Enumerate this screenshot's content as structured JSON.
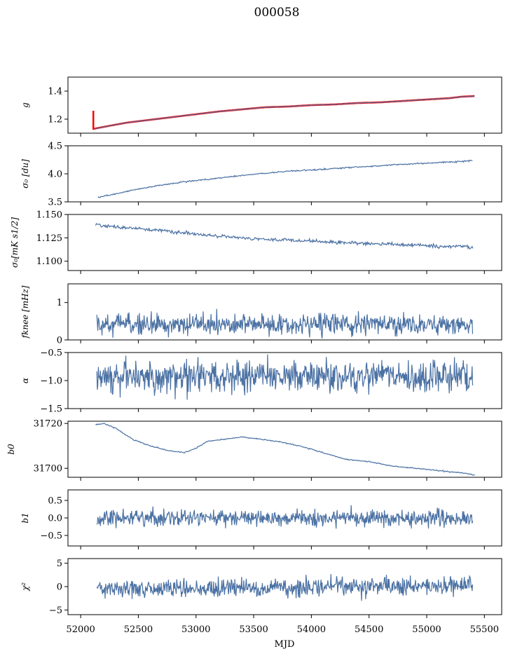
{
  "figure": {
    "title": "000058",
    "xlabel": "MJD",
    "x_ticks": [
      52000,
      52500,
      53000,
      53500,
      54000,
      54500,
      55000,
      55500
    ],
    "x_range": [
      51890,
      55650
    ]
  },
  "chart_data": [
    {
      "type": "line",
      "ylabel": "g",
      "ylim": [
        1.1,
        1.5
      ],
      "yticks": [
        1.2,
        1.4
      ],
      "series": [
        {
          "color": "#ff0000",
          "x": [
            52110,
            52200,
            52400,
            52600,
            52800,
            53000,
            53200,
            53400,
            53600,
            53800,
            54000,
            54200,
            54400,
            54600,
            54800,
            55000,
            55200,
            55300,
            55420
          ],
          "y": [
            1.13,
            1.145,
            1.175,
            1.195,
            1.215,
            1.235,
            1.255,
            1.27,
            1.285,
            1.29,
            1.3,
            1.305,
            1.315,
            1.32,
            1.33,
            1.34,
            1.35,
            1.36,
            1.365
          ]
        },
        {
          "color": "#4c72a4",
          "x": [
            52120,
            52200,
            52400,
            52600,
            52800,
            53000,
            53200,
            53400,
            53600,
            53800,
            54000,
            54200,
            54400,
            54600,
            54800,
            55000,
            55200,
            55300,
            55420
          ],
          "y": [
            1.13,
            1.145,
            1.175,
            1.195,
            1.215,
            1.235,
            1.255,
            1.27,
            1.285,
            1.29,
            1.3,
            1.305,
            1.315,
            1.32,
            1.33,
            1.34,
            1.35,
            1.36,
            1.365
          ]
        }
      ],
      "spike": {
        "x": 52110,
        "y_start": 1.125,
        "y_end": 1.26
      }
    },
    {
      "type": "line",
      "ylabel": "σ₀ [du]",
      "ylim": [
        3.5,
        4.5
      ],
      "yticks": [
        3.5,
        4.0,
        4.5
      ],
      "series": [
        {
          "color": "#4c72a4",
          "x": [
            52150,
            52300,
            52500,
            52700,
            52900,
            53100,
            53300,
            53500,
            53700,
            53900,
            54100,
            54300,
            54500,
            54700,
            54900,
            55100,
            55300,
            55400
          ],
          "y": [
            3.58,
            3.64,
            3.73,
            3.8,
            3.86,
            3.9,
            3.95,
            3.99,
            4.03,
            4.06,
            4.08,
            4.11,
            4.13,
            4.16,
            4.18,
            4.2,
            4.22,
            4.24
          ]
        }
      ]
    },
    {
      "type": "line",
      "ylabel": "σ₀[mK s1/2]",
      "ylim": [
        1.09,
        1.15
      ],
      "yticks": [
        1.1,
        1.125,
        1.15
      ],
      "series": [
        {
          "color": "#4c72a4",
          "x": [
            52130,
            52300,
            52500,
            52700,
            52900,
            53100,
            53300,
            53500,
            53700,
            53900,
            54100,
            54300,
            54500,
            54700,
            54900,
            55100,
            55300,
            55400
          ],
          "y": [
            1.139,
            1.137,
            1.135,
            1.133,
            1.13,
            1.128,
            1.126,
            1.124,
            1.123,
            1.122,
            1.121,
            1.12,
            1.119,
            1.118,
            1.117,
            1.116,
            1.116,
            1.115
          ]
        }
      ]
    },
    {
      "type": "line",
      "ylabel": "fknee [mHz]",
      "ylim": [
        0,
        1.5
      ],
      "yticks": [
        0,
        1
      ],
      "series": [
        {
          "color": "#4c72a4",
          "x_range": [
            52140,
            55400
          ],
          "mean": 0.42,
          "noise": 0.14
        }
      ]
    },
    {
      "type": "line",
      "ylabel": "α",
      "ylim": [
        -1.5,
        -0.5
      ],
      "yticks": [
        -1.5,
        -1.0,
        -0.5
      ],
      "series": [
        {
          "color": "#4c72a4",
          "x_range": [
            52140,
            55400
          ],
          "mean": -0.93,
          "noise": 0.14
        }
      ]
    },
    {
      "type": "line",
      "ylabel": "b0",
      "ylim": [
        31696,
        31721
      ],
      "yticks": [
        31700,
        31720
      ],
      "series": [
        {
          "color": "#4c72a4",
          "x": [
            52130,
            52200,
            52300,
            52450,
            52600,
            52750,
            52900,
            53000,
            53100,
            53250,
            53400,
            53550,
            53700,
            53900,
            54100,
            54300,
            54500,
            54700,
            54900,
            55100,
            55300,
            55420
          ],
          "y": [
            31719.5,
            31720,
            31718,
            31713,
            31710,
            31708,
            31707,
            31709,
            31712,
            31713,
            31714,
            31713,
            31712,
            31710,
            31707,
            31704,
            31703,
            31701,
            31700,
            31699,
            31698,
            31697
          ]
        }
      ]
    },
    {
      "type": "line",
      "ylabel": "b1",
      "ylim": [
        -0.8,
        0.8
      ],
      "yticks": [
        -0.5,
        0.0,
        0.5
      ],
      "series": [
        {
          "color": "#4c72a4",
          "x_range": [
            52140,
            55400
          ],
          "mean": 0.0,
          "noise": 0.12
        }
      ]
    },
    {
      "type": "line",
      "ylabel": "χ²",
      "ylim": [
        -6,
        6
      ],
      "yticks": [
        -5,
        0,
        5
      ],
      "series": [
        {
          "color": "#4c72a4",
          "x_range": [
            52140,
            55400
          ],
          "mean": 0.0,
          "noise": 1.0
        }
      ]
    }
  ]
}
